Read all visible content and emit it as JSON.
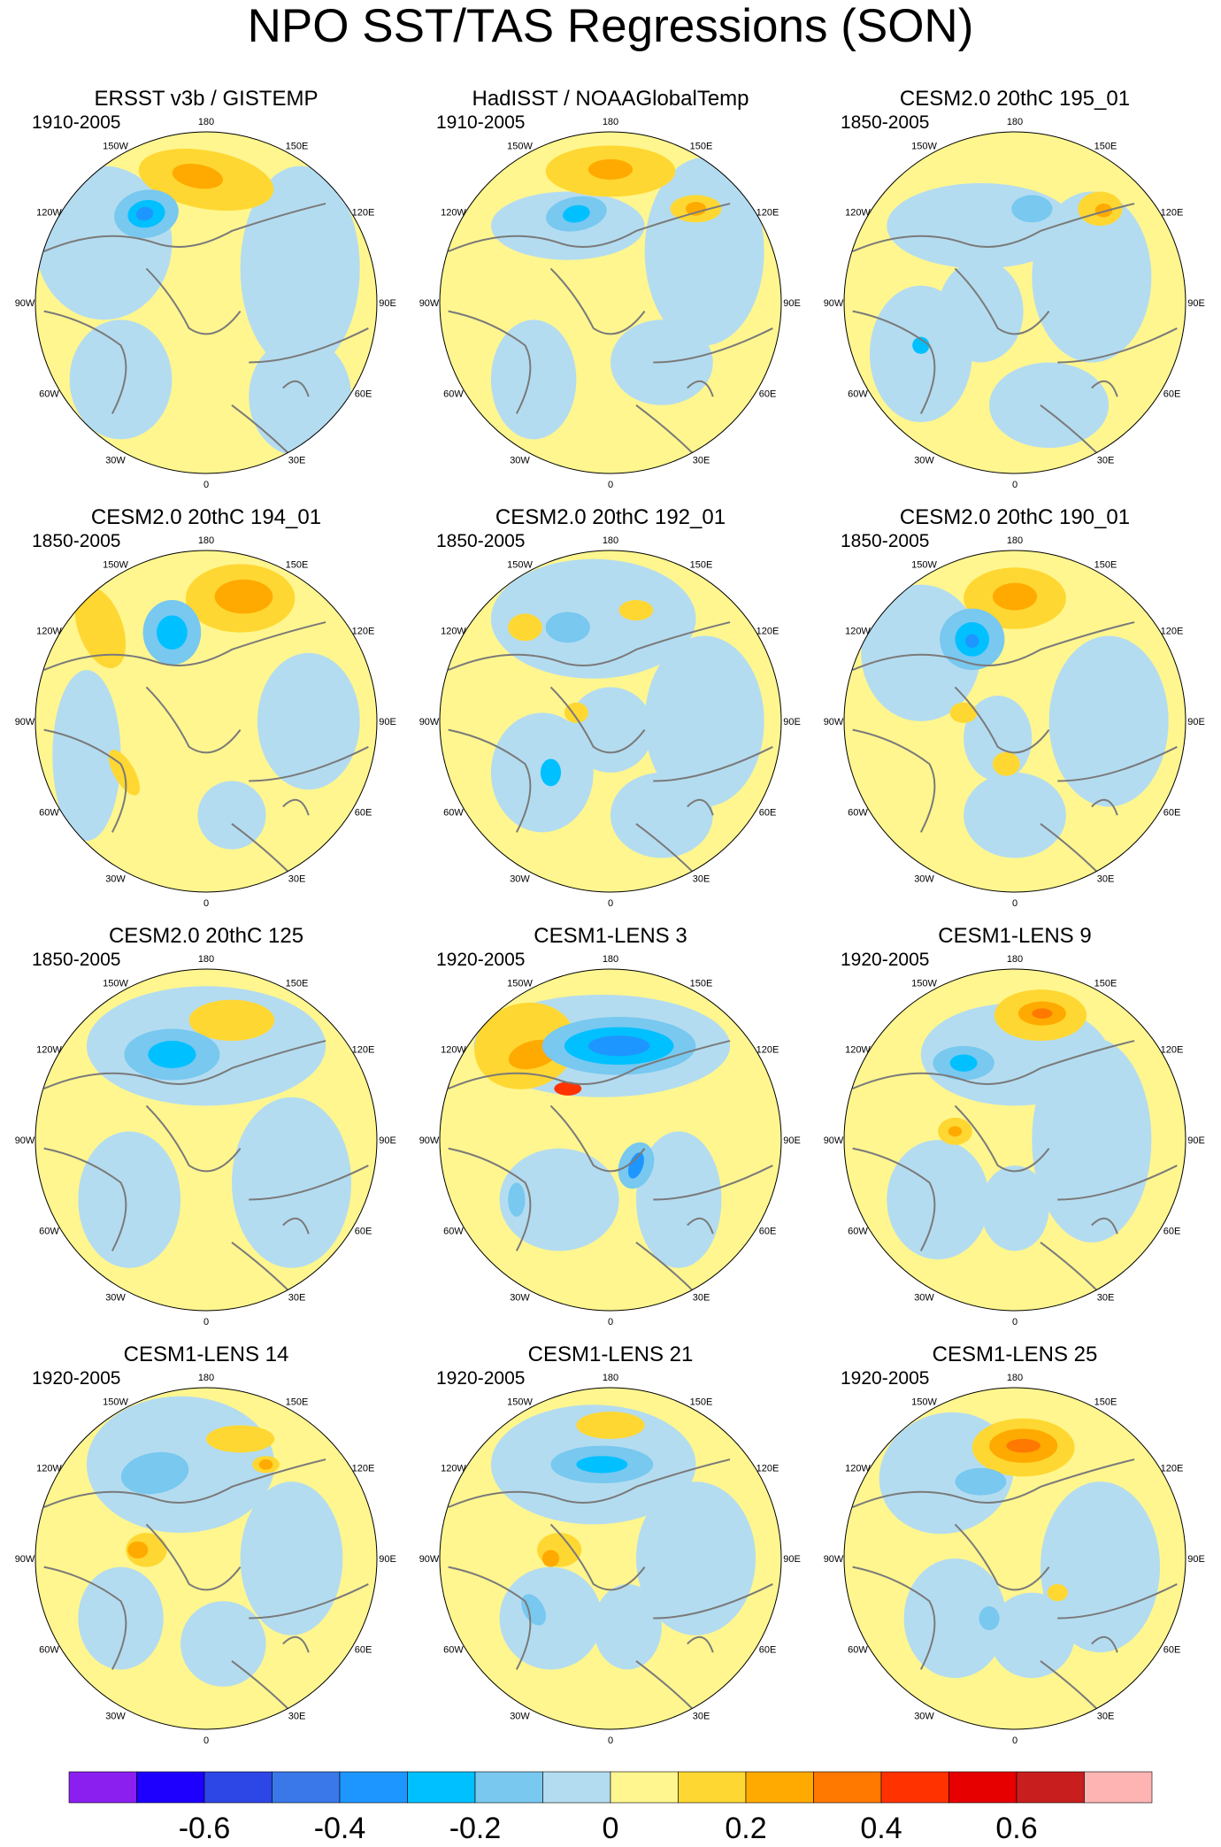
{
  "title": "NPO SST/TAS Regressions (SON)",
  "colors": {
    "negative_strong": "#1e00ff",
    "neutral": "#fff68f",
    "panel_border": "#000000",
    "coastline": "#7a7a7a"
  },
  "lon_labels": [
    "180",
    "150W",
    "120W",
    "90W",
    "60W",
    "30W",
    "0",
    "30E",
    "60E",
    "90E",
    "120E",
    "150E"
  ],
  "panels": [
    {
      "title": "ERSST v3b / GISTEMP",
      "period": "1910-2005"
    },
    {
      "title": "HadISST / NOAAGlobalTemp",
      "period": "1910-2005"
    },
    {
      "title": "CESM2.0 20thC 195_01",
      "period": "1850-2005"
    },
    {
      "title": "CESM2.0 20thC 194_01",
      "period": "1850-2005"
    },
    {
      "title": "CESM2.0 20thC 192_01",
      "period": "1850-2005"
    },
    {
      "title": "CESM2.0 20thC 190_01",
      "period": "1850-2005"
    },
    {
      "title": "CESM2.0 20thC 125",
      "period": "1850-2005"
    },
    {
      "title": "CESM1-LENS 3",
      "period": "1920-2005"
    },
    {
      "title": "CESM1-LENS 9",
      "period": "1920-2005"
    },
    {
      "title": "CESM1-LENS 14",
      "period": "1920-2005"
    },
    {
      "title": "CESM1-LENS 21",
      "period": "1920-2005"
    },
    {
      "title": "CESM1-LENS 25",
      "period": "1920-2005"
    }
  ],
  "colorbar": {
    "colors": [
      "#8a1ff0",
      "#1e00ff",
      "#2d46e6",
      "#3a78ea",
      "#1e96ff",
      "#00c0ff",
      "#78c8f0",
      "#b4dcf0",
      "#fff68f",
      "#ffd732",
      "#ffaa00",
      "#ff7800",
      "#ff3200",
      "#e60000",
      "#c81e1e",
      "#ffb4b4"
    ],
    "tick_labels": [
      "-0.6",
      "-0.4",
      "-0.2",
      "0",
      "0.2",
      "0.4",
      "0.6"
    ],
    "tick_values": [
      -0.6,
      -0.4,
      -0.2,
      0,
      0.2,
      0.4,
      0.6
    ]
  }
}
